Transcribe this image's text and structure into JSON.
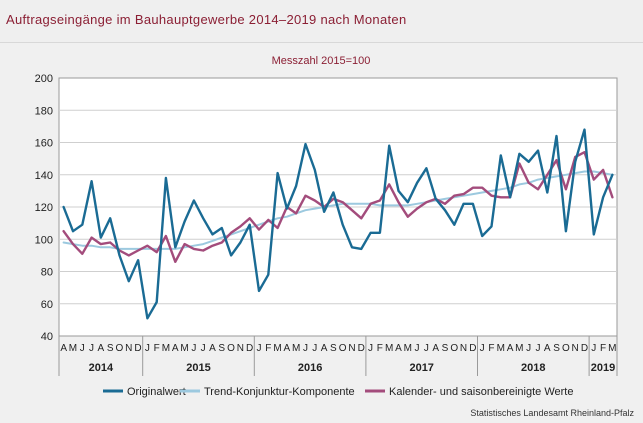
{
  "title": "Auftragseingänge im Bauhauptgewerbe 2014–2019 nach Monaten",
  "subtitle": "Messzahl 2015=100",
  "source": "Statistisches Landesamt Rheinland-Pfalz",
  "colors": {
    "title": "#8b1f34",
    "original": "#1a6b94",
    "trend": "#9cc9df",
    "adjusted": "#a34c7c",
    "grid": "#cfcfcf"
  },
  "chart_data": {
    "type": "line",
    "subtitle": "Messzahl 2015=100",
    "ylim": [
      40,
      200
    ],
    "yticks": [
      40,
      60,
      80,
      100,
      120,
      140,
      160,
      180,
      200
    ],
    "grid": true,
    "legend_position": "bottom",
    "month_labels": [
      "A",
      "M",
      "J",
      "J",
      "A",
      "S",
      "O",
      "N",
      "D",
      "J",
      "F",
      "M",
      "A",
      "M",
      "J",
      "J",
      "A",
      "S",
      "O",
      "N",
      "D",
      "J",
      "F",
      "M",
      "A",
      "M",
      "J",
      "J",
      "A",
      "S",
      "O",
      "N",
      "D",
      "J",
      "F",
      "M",
      "A",
      "M",
      "J",
      "J",
      "A",
      "S",
      "O",
      "N",
      "D",
      "J",
      "F",
      "M",
      "A",
      "M",
      "J",
      "J",
      "A",
      "S",
      "O",
      "N",
      "D",
      "J",
      "F",
      "M"
    ],
    "years": [
      {
        "label": "2014",
        "start": 0,
        "count": 9
      },
      {
        "label": "2015",
        "start": 9,
        "count": 12
      },
      {
        "label": "2016",
        "start": 21,
        "count": 12
      },
      {
        "label": "2017",
        "start": 33,
        "count": 12
      },
      {
        "label": "2018",
        "start": 45,
        "count": 12
      },
      {
        "label": "2019",
        "start": 57,
        "count": 3
      }
    ],
    "series": [
      {
        "name": "Originalwert",
        "color": "#1a6b94",
        "width": 2.4,
        "values": [
          120,
          105,
          109,
          136,
          101,
          113,
          90,
          74,
          87,
          51,
          61,
          138,
          95,
          111,
          124,
          113,
          103,
          107,
          90,
          98,
          109,
          68,
          78,
          141,
          119,
          133,
          159,
          143,
          117,
          129,
          109,
          95,
          94,
          104,
          104,
          158,
          130,
          123,
          135,
          144,
          125,
          118,
          109,
          122,
          122,
          102,
          108,
          152,
          126,
          153,
          148,
          155,
          129,
          164,
          105,
          148,
          168,
          103,
          126,
          140
        ]
      },
      {
        "name": "Trend-Konjunktur-Komponente",
        "color": "#9cc9df",
        "width": 2.0,
        "values": [
          98,
          97,
          96,
          96,
          95,
          95,
          94,
          94,
          94,
          94,
          94,
          94,
          94,
          95,
          96,
          97,
          99,
          101,
          103,
          105,
          107,
          109,
          111,
          113,
          114,
          116,
          118,
          119,
          120,
          121,
          122,
          122,
          122,
          122,
          121,
          121,
          121,
          121,
          122,
          123,
          124,
          125,
          126,
          127,
          128,
          129,
          130,
          131,
          132,
          134,
          135,
          137,
          138,
          139,
          140,
          141,
          142,
          142,
          141,
          140
        ]
      },
      {
        "name": "Kalender- und saisonbereinigte Werte",
        "color": "#a34c7c",
        "width": 2.4,
        "values": [
          105,
          97,
          91,
          101,
          97,
          98,
          93,
          90,
          93,
          96,
          92,
          102,
          86,
          97,
          94,
          93,
          96,
          98,
          104,
          108,
          113,
          106,
          112,
          107,
          120,
          116,
          127,
          124,
          120,
          125,
          123,
          118,
          113,
          122,
          124,
          134,
          123,
          114,
          119,
          123,
          125,
          122,
          127,
          128,
          132,
          132,
          127,
          126,
          126,
          147,
          135,
          131,
          140,
          149,
          131,
          151,
          154,
          137,
          143,
          126
        ]
      }
    ]
  }
}
